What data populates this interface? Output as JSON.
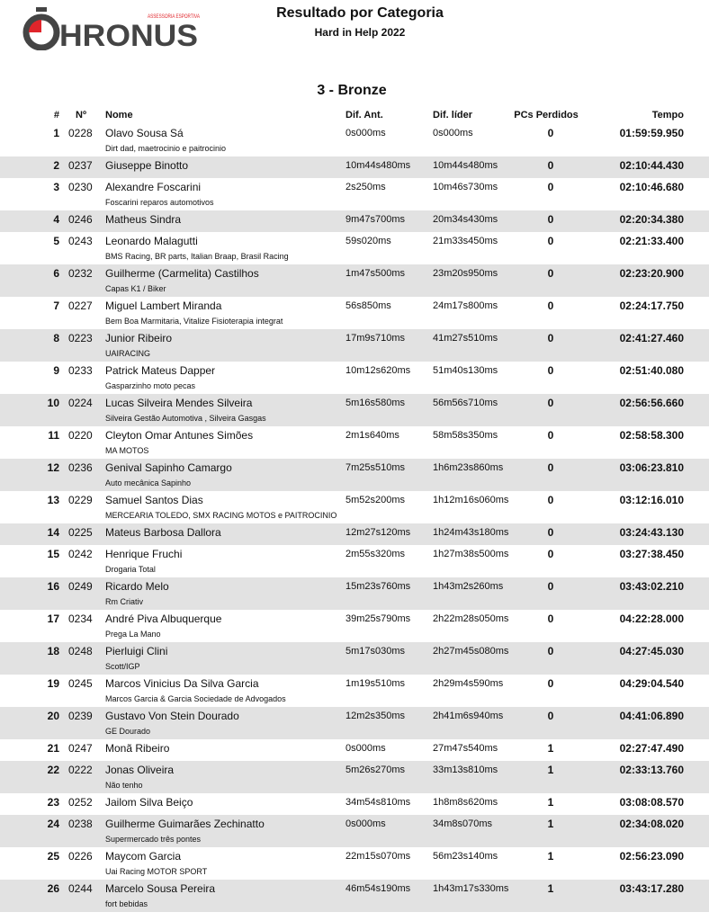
{
  "header": {
    "logo_text": "CHRONUS",
    "logo_tagline": "ASSESSORIA ESPORTIVA",
    "title": "Resultado por Categoria",
    "event": "Hard in Help 2022",
    "category": "3 - Bronze"
  },
  "columns": {
    "pos": "#",
    "num": "Nº",
    "name": "Nome",
    "dif_ant": "Dif. Ant.",
    "dif_lider": "Dif. líder",
    "pcs": "PCs Perdidos",
    "tempo": "Tempo"
  },
  "rows": [
    {
      "pos": "1",
      "num": "0228",
      "name": "Olavo  Sousa Sá",
      "team": "Dirt dad, maetrocinio e paitrocinio",
      "dif_ant": "0s000ms",
      "dif_lider": "0s000ms",
      "pcs": "0",
      "tempo": "01:59:59.950"
    },
    {
      "pos": "2",
      "num": "0237",
      "name": "Giuseppe  Binotto",
      "team": "",
      "dif_ant": "10m44s480ms",
      "dif_lider": "10m44s480ms",
      "pcs": "0",
      "tempo": "02:10:44.430"
    },
    {
      "pos": "3",
      "num": "0230",
      "name": "Alexandre Foscarini",
      "team": "Foscarini reparos automotivos",
      "dif_ant": "2s250ms",
      "dif_lider": "10m46s730ms",
      "pcs": "0",
      "tempo": "02:10:46.680"
    },
    {
      "pos": "4",
      "num": "0246",
      "name": "Matheus  Sindra",
      "team": "",
      "dif_ant": "9m47s700ms",
      "dif_lider": "20m34s430ms",
      "pcs": "0",
      "tempo": "02:20:34.380"
    },
    {
      "pos": "5",
      "num": "0243",
      "name": "Leonardo Malagutti",
      "team": "BMS Racing, BR parts, Italian Braap, Brasil Racing",
      "dif_ant": "59s020ms",
      "dif_lider": "21m33s450ms",
      "pcs": "0",
      "tempo": "02:21:33.400"
    },
    {
      "pos": "6",
      "num": "0232",
      "name": "Guilherme (Carmelita) Castilhos",
      "team": " Capas K1 / Biker",
      "dif_ant": "1m47s500ms",
      "dif_lider": "23m20s950ms",
      "pcs": "0",
      "tempo": "02:23:20.900"
    },
    {
      "pos": "7",
      "num": "0227",
      "name": "Miguel Lambert Miranda",
      "team": "Bem Boa Marmitaria, Vitalize Fisioterapia integrat",
      "dif_ant": "56s850ms",
      "dif_lider": "24m17s800ms",
      "pcs": "0",
      "tempo": "02:24:17.750"
    },
    {
      "pos": "8",
      "num": "0223",
      "name": "Junior Ribeiro",
      "team": "UAIRACING",
      "dif_ant": "17m9s710ms",
      "dif_lider": "41m27s510ms",
      "pcs": "0",
      "tempo": "02:41:27.460"
    },
    {
      "pos": "9",
      "num": "0233",
      "name": "Patrick Mateus  Dapper",
      "team": "Gasparzinho moto pecas",
      "dif_ant": "10m12s620ms",
      "dif_lider": "51m40s130ms",
      "pcs": "0",
      "tempo": "02:51:40.080"
    },
    {
      "pos": "10",
      "num": "0224",
      "name": "Lucas Silveira Mendes Silveira",
      "team": "Silveira Gestão Automotiva , Silveira Gasgas",
      "dif_ant": "5m16s580ms",
      "dif_lider": "56m56s710ms",
      "pcs": "0",
      "tempo": "02:56:56.660"
    },
    {
      "pos": "11",
      "num": "0220",
      "name": "Cleyton  Omar Antunes Simões",
      "team": "MA MOTOS",
      "dif_ant": "2m1s640ms",
      "dif_lider": "58m58s350ms",
      "pcs": "0",
      "tempo": "02:58:58.300"
    },
    {
      "pos": "12",
      "num": "0236",
      "name": "Genival Sapinho  Camargo",
      "team": "Auto mecânica Sapinho",
      "dif_ant": "7m25s510ms",
      "dif_lider": "1h6m23s860ms",
      "pcs": "0",
      "tempo": "03:06:23.810"
    },
    {
      "pos": "13",
      "num": "0229",
      "name": "Samuel Santos Dias",
      "team": "MERCEARIA TOLEDO, SMX RACING MOTOS e PAITROCINIO",
      "dif_ant": "5m52s200ms",
      "dif_lider": "1h12m16s060ms",
      "pcs": "0",
      "tempo": "03:12:16.010"
    },
    {
      "pos": "14",
      "num": "0225",
      "name": "Mateus  Barbosa Dallora",
      "team": "",
      "dif_ant": "12m27s120ms",
      "dif_lider": "1h24m43s180ms",
      "pcs": "0",
      "tempo": "03:24:43.130"
    },
    {
      "pos": "15",
      "num": "0242",
      "name": "Henrique Fruchi",
      "team": "Drogaria Total",
      "dif_ant": "2m55s320ms",
      "dif_lider": "1h27m38s500ms",
      "pcs": "0",
      "tempo": "03:27:38.450"
    },
    {
      "pos": "16",
      "num": "0249",
      "name": "Ricardo Melo",
      "team": "Rm Criativ",
      "dif_ant": "15m23s760ms",
      "dif_lider": "1h43m2s260ms",
      "pcs": "0",
      "tempo": "03:43:02.210"
    },
    {
      "pos": "17",
      "num": "0234",
      "name": "André Piva Albuquerque",
      "team": "Prega La Mano",
      "dif_ant": "39m25s790ms",
      "dif_lider": "2h22m28s050ms",
      "pcs": "0",
      "tempo": "04:22:28.000"
    },
    {
      "pos": "18",
      "num": "0248",
      "name": "Pierluigi Clini",
      "team": "Scott/IGP",
      "dif_ant": "5m17s030ms",
      "dif_lider": "2h27m45s080ms",
      "pcs": "0",
      "tempo": "04:27:45.030"
    },
    {
      "pos": "19",
      "num": "0245",
      "name": "Marcos Vinicius  Da Silva Garcia",
      "team": "Marcos Garcia & Garcia Sociedade de Advogados",
      "dif_ant": "1m19s510ms",
      "dif_lider": "2h29m4s590ms",
      "pcs": "0",
      "tempo": "04:29:04.540"
    },
    {
      "pos": "20",
      "num": "0239",
      "name": "Gustavo  Von Stein Dourado",
      "team": "GE Dourado",
      "dif_ant": "12m2s350ms",
      "dif_lider": "2h41m6s940ms",
      "pcs": "0",
      "tempo": "04:41:06.890"
    },
    {
      "pos": "21",
      "num": "0247",
      "name": "Monã Ribeiro",
      "team": "",
      "dif_ant": "0s000ms",
      "dif_lider": "27m47s540ms",
      "pcs": "1",
      "tempo": "02:27:47.490"
    },
    {
      "pos": "22",
      "num": "0222",
      "name": "Jonas Oliveira",
      "team": "Não tenho",
      "dif_ant": "5m26s270ms",
      "dif_lider": "33m13s810ms",
      "pcs": "1",
      "tempo": "02:33:13.760"
    },
    {
      "pos": "23",
      "num": "0252",
      "name": "Jailom Silva Beiço",
      "team": "",
      "dif_ant": "34m54s810ms",
      "dif_lider": "1h8m8s620ms",
      "pcs": "1",
      "tempo": "03:08:08.570"
    },
    {
      "pos": "24",
      "num": "0238",
      "name": "Guilherme  Guimarães Zechinatto",
      "team": "Supermercado três pontes",
      "dif_ant": "0s000ms",
      "dif_lider": "34m8s070ms",
      "pcs": "1",
      "tempo": "02:34:08.020"
    },
    {
      "pos": "25",
      "num": "0226",
      "name": "Maycom Garcia",
      "team": "Uai Racing MOTOR SPORT",
      "dif_ant": "22m15s070ms",
      "dif_lider": "56m23s140ms",
      "pcs": "1",
      "tempo": "02:56:23.090"
    },
    {
      "pos": "26",
      "num": "0244",
      "name": "Marcelo  Sousa Pereira",
      "team": "fort bebidas",
      "dif_ant": "46m54s190ms",
      "dif_lider": "1h43m17s330ms",
      "pcs": "1",
      "tempo": "03:43:17.280"
    }
  ]
}
